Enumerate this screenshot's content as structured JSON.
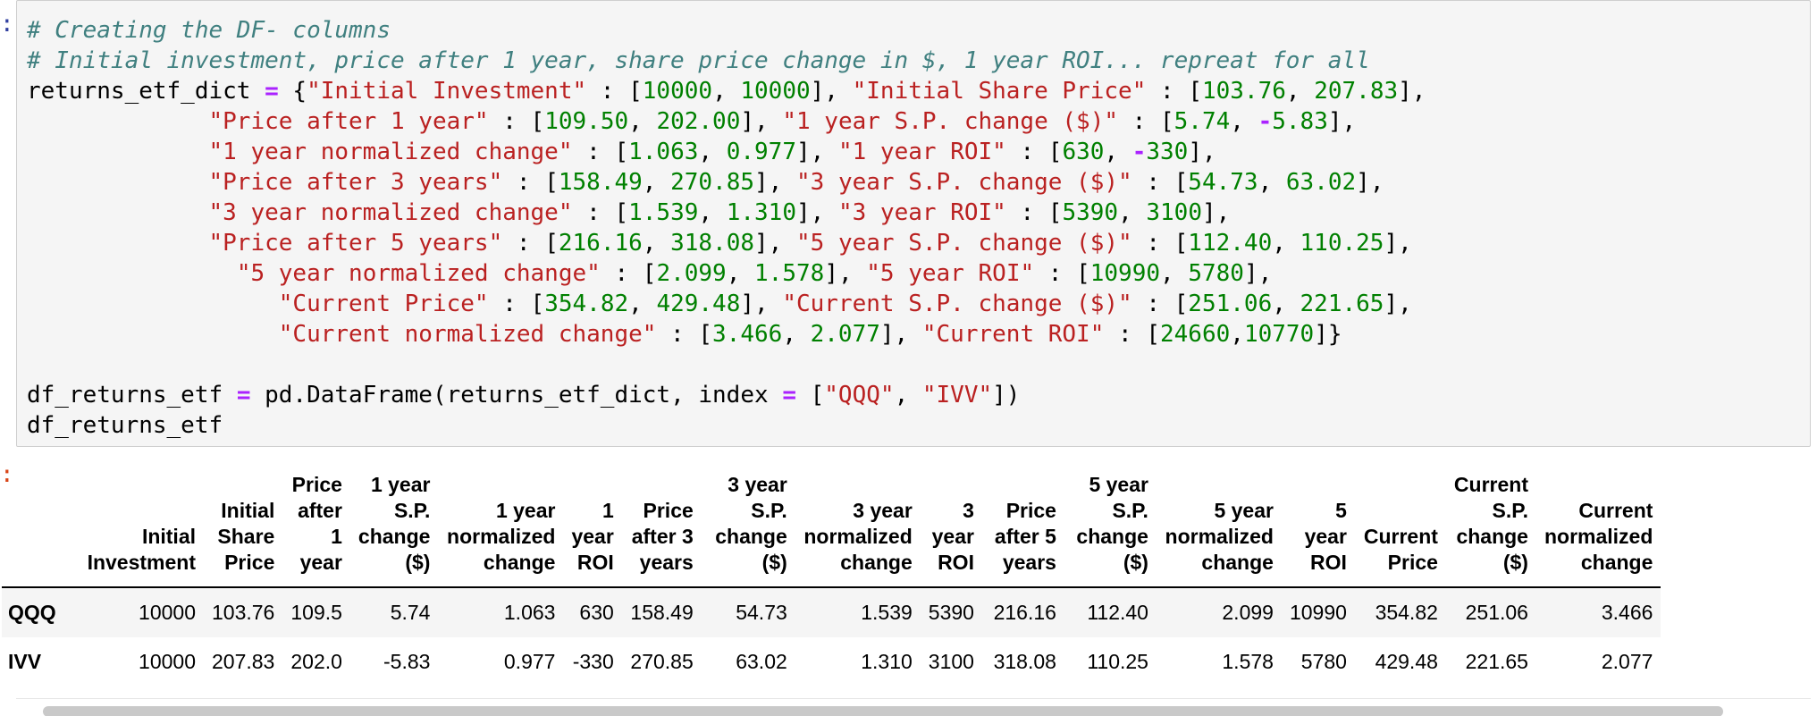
{
  "prompts": {
    "input_marker": ":",
    "output_marker": ":"
  },
  "code_cell": {
    "comment_1": "# Creating the DF- columns",
    "comment_2": "# Initial investment, price after 1 year, share price change in $, 1 year ROI... repreat for all",
    "dict_var": "returns_etf_dict",
    "dict_entries": [
      {
        "key": "\"Initial Investment\"",
        "v1": "10000",
        "v2": "10000"
      },
      {
        "key": "\"Initial Share Price\"",
        "v1": "103.76",
        "v2": "207.83"
      },
      {
        "key": "\"Price after 1 year\"",
        "v1": "109.50",
        "v2": "202.00"
      },
      {
        "key": "\"1 year S.P. change ($)\"",
        "v1": "5.74",
        "v2": "5.83",
        "v2_neg": "-"
      },
      {
        "key": "\"1 year normalized change\"",
        "v1": "1.063",
        "v2": "0.977"
      },
      {
        "key": "\"1 year ROI\"",
        "v1": "630",
        "v2": "330",
        "v2_neg": "-"
      },
      {
        "key": "\"Price after 3 years\"",
        "v1": "158.49",
        "v2": "270.85"
      },
      {
        "key": "\"3 year S.P. change ($)\"",
        "v1": "54.73",
        "v2": "63.02"
      },
      {
        "key": "\"3 year normalized change\"",
        "v1": "1.539",
        "v2": "1.310"
      },
      {
        "key": "\"3 year ROI\"",
        "v1": "5390",
        "v2": "3100"
      },
      {
        "key": "\"Price after 5 years\"",
        "v1": "216.16",
        "v2": "318.08"
      },
      {
        "key": "\"5 year S.P. change ($)\"",
        "v1": "112.40",
        "v2": "110.25"
      },
      {
        "key": "\"5 year normalized change\"",
        "v1": "2.099",
        "v2": "1.578"
      },
      {
        "key": "\"5 year ROI\"",
        "v1": "10990",
        "v2": "5780"
      },
      {
        "key": "\"Current Price\"",
        "v1": "354.82",
        "v2": "429.48"
      },
      {
        "key": "\"Current S.P. change ($)\"",
        "v1": "251.06",
        "v2": "221.65"
      },
      {
        "key": "\"Current normalized change\"",
        "v1": "3.466",
        "v2": "2.077"
      },
      {
        "key": "\"Current ROI\"",
        "v1": "24660",
        "v2": "10770"
      }
    ],
    "df_var": "df_returns_etf",
    "call_prefix": "pd.DataFrame(returns_etf_dict, index",
    "index_1": "\"QQQ\"",
    "index_2": "\"IVV\""
  },
  "table": {
    "headers": [
      {
        "lines": [
          "Initial",
          "Investment"
        ]
      },
      {
        "lines": [
          "Initial",
          "Share",
          "Price"
        ]
      },
      {
        "lines": [
          "Price",
          "after",
          "1",
          "year"
        ]
      },
      {
        "lines": [
          "1 year",
          "S.P.",
          "change",
          "($)"
        ]
      },
      {
        "lines": [
          "1 year",
          "normalized",
          "change"
        ]
      },
      {
        "lines": [
          "1",
          "year",
          "ROI"
        ]
      },
      {
        "lines": [
          "Price",
          "after 3",
          "years"
        ]
      },
      {
        "lines": [
          "3 year",
          "S.P.",
          "change",
          "($)"
        ]
      },
      {
        "lines": [
          "3 year",
          "normalized",
          "change"
        ]
      },
      {
        "lines": [
          "3",
          "year",
          "ROI"
        ]
      },
      {
        "lines": [
          "Price",
          "after 5",
          "years"
        ]
      },
      {
        "lines": [
          "5 year",
          "S.P.",
          "change",
          "($)"
        ]
      },
      {
        "lines": [
          "5 year",
          "normalized",
          "change"
        ]
      },
      {
        "lines": [
          "5",
          "year",
          "ROI"
        ]
      },
      {
        "lines": [
          "Current",
          "Price"
        ]
      },
      {
        "lines": [
          "Current",
          "S.P.",
          "change",
          "($)"
        ]
      },
      {
        "lines": [
          "Current",
          "normalized",
          "change"
        ]
      }
    ],
    "rows": [
      {
        "index": "QQQ",
        "values": [
          "10000",
          "103.76",
          "109.5",
          "5.74",
          "1.063",
          "630",
          "158.49",
          "54.73",
          "1.539",
          "5390",
          "216.16",
          "112.40",
          "2.099",
          "10990",
          "354.82",
          "251.06",
          "3.466"
        ]
      },
      {
        "index": "IVV",
        "values": [
          "10000",
          "207.83",
          "202.0",
          "-5.83",
          "0.977",
          "-330",
          "270.85",
          "63.02",
          "1.310",
          "3100",
          "318.08",
          "110.25",
          "1.578",
          "5780",
          "429.48",
          "221.65",
          "2.077"
        ]
      }
    ]
  },
  "colors": {
    "comment": "#408080",
    "string": "#ba2121",
    "number": "#008000",
    "operator": "#aa22ff",
    "cell_background": "#f5f5f5"
  }
}
